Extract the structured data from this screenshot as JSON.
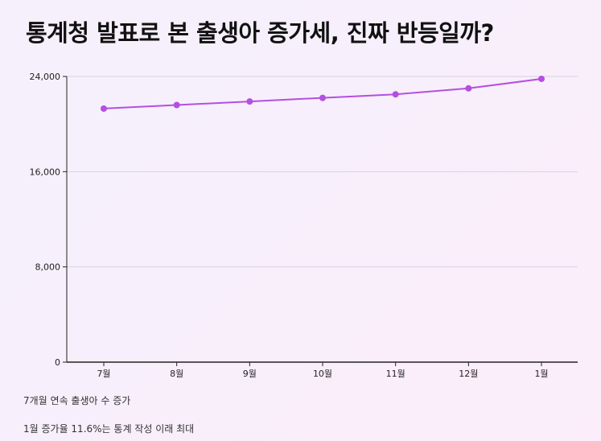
{
  "title": "통계청 발표로 본 출생아 증가세, 진짜 반등일까?",
  "notes": [
    "7개월 연속 출생아 수 증가",
    "1월 증가율 11.6%는 통계 작성 이래 최대"
  ],
  "colors": {
    "line": "#b44fe0",
    "point": "#b44fe0",
    "grid": "#d9d2e0",
    "axis": "#222222"
  },
  "chart_data": {
    "type": "line",
    "title": "통계청 발표로 본 출생아 증가세, 진짜 반등일까?",
    "categories": [
      "7월",
      "8월",
      "9월",
      "10월",
      "11월",
      "12월",
      "1월"
    ],
    "values": [
      21300,
      21600,
      21900,
      22200,
      22500,
      23000,
      23800
    ],
    "ylim": [
      0,
      24000
    ],
    "yticks": [
      0,
      8000,
      16000,
      24000
    ],
    "ytick_labels": [
      "0",
      "8,000",
      "16,000",
      "24,000"
    ],
    "grid": true,
    "xlabel": "",
    "ylabel": ""
  }
}
